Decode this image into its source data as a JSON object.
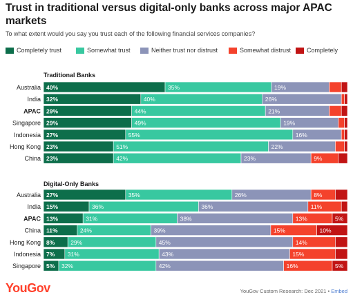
{
  "title": "Trust in traditional versus digital-only banks across major APAC markets",
  "subtitle": "To what extent would you say you trust each of the following financial services companies?",
  "legend": [
    {
      "label": "Completely trust",
      "color": "#0d6e4b"
    },
    {
      "label": "Somewhat trust",
      "color": "#38c8a0"
    },
    {
      "label": "Neither trust nor distrust",
      "color": "#8c94b8"
    },
    {
      "label": "Somewhat distrust",
      "color": "#f4422c"
    },
    {
      "label": "Completely",
      "color": "#c11414"
    }
  ],
  "footer": {
    "logo": "YouGov",
    "source": "YouGov Custom Research: Dec 2021",
    "separator": " • ",
    "embed": "Embed"
  },
  "chart_data": [
    {
      "type": "bar",
      "orientation": "horizontal",
      "stacked": true,
      "title": "Traditional Banks",
      "categories": [
        "Australia",
        "India",
        "APAC",
        "Singapore",
        "Indonesia",
        "Hong Kong",
        "China"
      ],
      "highlight": "APAC",
      "series": [
        {
          "name": "Completely trust",
          "values": [
            40,
            32,
            29,
            29,
            27,
            23,
            23
          ]
        },
        {
          "name": "Somewhat trust",
          "values": [
            35,
            40,
            44,
            49,
            55,
            51,
            42
          ]
        },
        {
          "name": "Neither trust nor distrust",
          "values": [
            19,
            26,
            21,
            19,
            16,
            22,
            23
          ]
        },
        {
          "name": "Somewhat distrust",
          "values": [
            4,
            1,
            4,
            2,
            1,
            3,
            9
          ]
        },
        {
          "name": "Completely",
          "values": [
            2,
            1,
            2,
            1,
            1,
            1,
            3
          ]
        }
      ],
      "xlim": [
        0,
        100
      ]
    },
    {
      "type": "bar",
      "orientation": "horizontal",
      "stacked": true,
      "title": "Digital-Only Banks",
      "categories": [
        "Australia",
        "India",
        "APAC",
        "China",
        "Hong Kong",
        "Indonesia",
        "Singapore"
      ],
      "highlight": "APAC",
      "series": [
        {
          "name": "Completely trust",
          "values": [
            27,
            15,
            13,
            11,
            8,
            7,
            5
          ]
        },
        {
          "name": "Somewhat trust",
          "values": [
            35,
            36,
            31,
            24,
            29,
            31,
            32
          ]
        },
        {
          "name": "Neither trust nor distrust",
          "values": [
            26,
            36,
            38,
            39,
            45,
            43,
            42
          ]
        },
        {
          "name": "Somewhat distrust",
          "values": [
            8,
            11,
            13,
            15,
            14,
            15,
            16
          ]
        },
        {
          "name": "Completely",
          "values": [
            4,
            2,
            5,
            10,
            4,
            4,
            5
          ]
        }
      ],
      "xlim": [
        0,
        100
      ]
    }
  ]
}
